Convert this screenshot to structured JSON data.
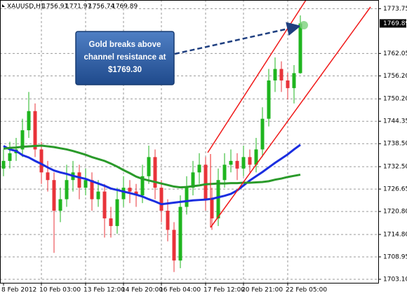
{
  "chart_data": {
    "type": "candlestick",
    "title": "XAUUSD,H1",
    "categories": [
      "8 Feb 2012",
      null,
      null,
      null,
      null,
      null,
      "10 Feb 03:00",
      null,
      null,
      null,
      null,
      null,
      null,
      "13 Feb 12:00",
      null,
      null,
      null,
      null,
      null,
      "14 Feb 20:00",
      null,
      null,
      null,
      null,
      null,
      "16 Feb 04:00",
      null,
      null,
      null,
      null,
      null,
      null,
      "17 Feb 12:00",
      null,
      null,
      null,
      null,
      null,
      "20 Feb 21:00",
      null,
      null,
      null,
      null,
      null,
      null,
      "22 Feb 05:00",
      null,
      null
    ],
    "open": [
      1732,
      1734,
      1736,
      1737,
      1742,
      1747,
      1737,
      1731,
      1729,
      1721,
      1724,
      1729,
      1731,
      1727,
      1729,
      1724,
      1726,
      1719,
      1717,
      1724,
      1727,
      1726,
      1725,
      1730,
      1735,
      1727,
      1721,
      1716,
      1708,
      1722,
      1727,
      1731,
      1733,
      1724,
      1719,
      1729,
      1733,
      1734,
      1732,
      1735,
      1733,
      1737,
      1745,
      1755,
      1758,
      1755,
      1753,
      1756.91
    ],
    "high": [
      1737,
      1739,
      1740,
      1745,
      1752,
      1749,
      1739,
      1734,
      1731,
      1727,
      1733,
      1734,
      1733,
      1732,
      1731,
      1729,
      1728,
      1722,
      1727,
      1730,
      1729,
      1728,
      1733,
      1738,
      1737,
      1729,
      1724,
      1718,
      1725,
      1730,
      1734,
      1736,
      1735,
      1727,
      1732,
      1736,
      1737,
      1736,
      1738,
      1737,
      1740,
      1748,
      1758,
      1761,
      1760,
      1757,
      1759,
      1771.97
    ],
    "low": [
      1730,
      1732,
      1734,
      1735,
      1740,
      1735,
      1728,
      1726,
      1710,
      1718,
      1722,
      1726,
      1724,
      1725,
      1721,
      1722,
      1714,
      1714,
      1715,
      1722,
      1723,
      1722,
      1723,
      1728,
      1724,
      1718,
      1713,
      1705,
      1706,
      1720,
      1725,
      1728,
      1721,
      1716,
      1717,
      1727,
      1731,
      1729,
      1730,
      1731,
      1731,
      1735,
      1743,
      1752,
      1752,
      1750,
      1749,
      1756.74
    ],
    "close": [
      1734,
      1736,
      1737,
      1742,
      1747,
      1737,
      1731,
      1729,
      1721,
      1724,
      1729,
      1731,
      1727,
      1729,
      1724,
      1726,
      1719,
      1717,
      1724,
      1727,
      1726,
      1725,
      1730,
      1735,
      1727,
      1721,
      1716,
      1708,
      1722,
      1727,
      1731,
      1733,
      1724,
      1719,
      1729,
      1733,
      1734,
      1732,
      1735,
      1733,
      1737,
      1745,
      1755,
      1758,
      1755,
      1753,
      1756.91,
      1769.89
    ],
    "up_color": "#1fb51f",
    "down_color": "#e8333a",
    "moving_averages": [
      {
        "color": "#1a2ee0",
        "values": [
          1737.9,
          1737.0,
          1736.6,
          1735.5,
          1734.9,
          1734.0,
          1733.2,
          1732.3,
          1731.5,
          1731.0,
          1730.6,
          1730.1,
          1729.7,
          1729.3,
          1728.7,
          1728.1,
          1727.5,
          1726.8,
          1726.4,
          1726.0,
          1725.6,
          1725.2,
          1724.7,
          1724.0,
          1723.4,
          1722.7,
          1722.9,
          1723.1,
          1723.3,
          1723.5,
          1723.7,
          1723.8,
          1723.9,
          1724.1,
          1724.5,
          1724.9,
          1725.4,
          1726.3,
          1727.6,
          1728.9,
          1730.0,
          1731.1,
          1732.3,
          1733.5,
          1734.6,
          1735.7,
          1737.0,
          1738.2
        ]
      },
      {
        "color": "#2a9a2a",
        "values": [
          1737.2,
          1737.4,
          1737.5,
          1737.7,
          1737.8,
          1737.9,
          1738.0,
          1737.8,
          1737.6,
          1737.3,
          1737.0,
          1736.6,
          1736.1,
          1735.6,
          1735.0,
          1734.5,
          1734.0,
          1733.3,
          1732.5,
          1731.6,
          1730.8,
          1729.9,
          1729.3,
          1728.9,
          1728.5,
          1728.1,
          1727.7,
          1727.3,
          1727.1,
          1727.2,
          1727.4,
          1727.6,
          1727.9,
          1728.0,
          1728.1,
          1728.1,
          1728.2,
          1728.2,
          1728.3,
          1728.3,
          1728.4,
          1728.5,
          1728.7,
          1729.1,
          1729.4,
          1729.8,
          1730.1,
          1730.4
        ]
      }
    ],
    "ylim": [
      1702.0,
      1776.0
    ],
    "yticks": [
      1773.75,
      1762.05,
      {
        "value": 1756.2,
        "label": "1756.20"
      },
      {
        "value": 1750.2,
        "label": "1750.20"
      },
      1744.35,
      {
        "value": 1738.5,
        "label": "1738.50"
      },
      {
        "value": 1732.5,
        "label": "1732.50"
      },
      1726.65,
      {
        "value": 1720.8,
        "label": "1720.80"
      },
      {
        "value": 1714.8,
        "label": "1714.80"
      },
      1708.95,
      {
        "value": 1703.1,
        "label": "1703.10"
      }
    ],
    "grid": true,
    "annotation": [
      "Gold breaks above",
      "channel resistance at",
      "$1769.30"
    ]
  }
}
